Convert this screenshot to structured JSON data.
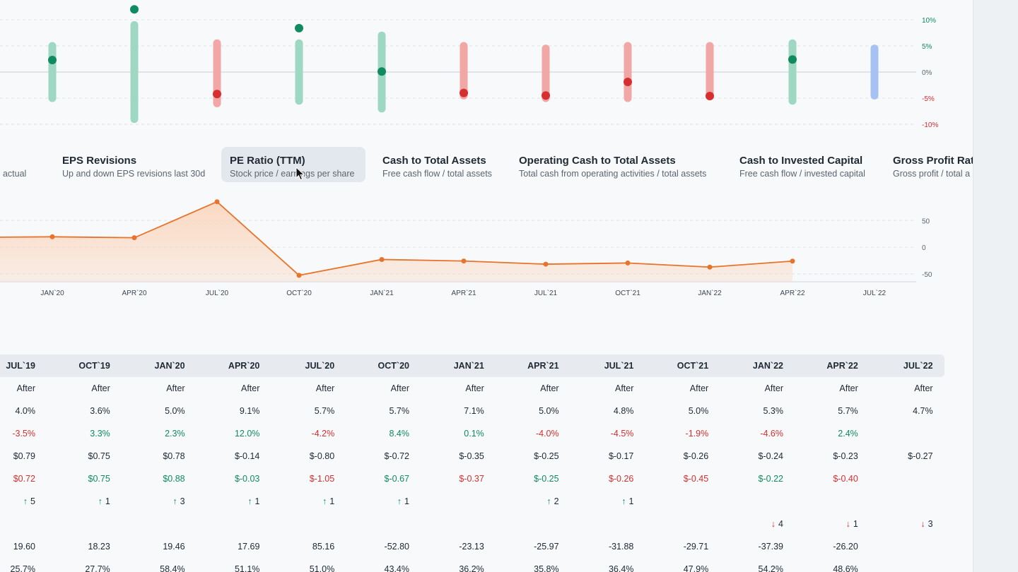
{
  "colors": {
    "positive": "#108a5f",
    "negative": "#d62f2f",
    "positive_bar": "#9fd8c2",
    "negative_bar": "#f2a7a7",
    "future_bar": "#a7c2f2",
    "line": "#e8732a",
    "area": "#fbd7bf"
  },
  "chart_data": [
    {
      "type": "scatter",
      "y_unit": "%",
      "ylim": [
        -10,
        10
      ],
      "y_ticks": [
        "10%",
        "5%",
        "0%",
        "-5%",
        "-10%"
      ],
      "points": [
        {
          "range": [
            -5,
            5
          ],
          "value": 2.3,
          "status": "positive"
        },
        {
          "range": [
            -9,
            9
          ],
          "value": 12.0,
          "status": "positive"
        },
        {
          "range": [
            -6,
            5.5
          ],
          "value": -4.2,
          "status": "negative"
        },
        {
          "range": [
            -5.5,
            5.5
          ],
          "value": 8.4,
          "status": "positive"
        },
        {
          "range": [
            -7,
            7
          ],
          "value": 0.1,
          "status": "positive"
        },
        {
          "range": [
            -4.5,
            5
          ],
          "value": -4.0,
          "status": "negative"
        },
        {
          "range": [
            -5,
            4.5
          ],
          "value": -4.5,
          "status": "negative"
        },
        {
          "range": [
            -5,
            5
          ],
          "value": -1.9,
          "status": "negative"
        },
        {
          "range": [
            -4.5,
            5
          ],
          "value": -4.6,
          "status": "negative"
        },
        {
          "range": [
            -5.5,
            5.5
          ],
          "value": 2.4,
          "status": "positive"
        },
        {
          "range": [
            -4.5,
            4.5
          ],
          "value": null,
          "status": "future"
        }
      ],
      "grid": true
    },
    {
      "type": "area",
      "x": [
        "OCT`19",
        "JAN`20",
        "APR`20",
        "JUL`20",
        "OCT`20",
        "JAN`21",
        "APR`21",
        "JUL`21",
        "OCT`21",
        "JAN`22",
        "APR`22"
      ],
      "x_ticks": [
        "JAN`20",
        "APR`20",
        "JUL`20",
        "OCT`20",
        "JAN`21",
        "APR`21",
        "JUL`21",
        "OCT`21",
        "JAN`22",
        "APR`22",
        "JUL`22"
      ],
      "values": [
        18.23,
        19.46,
        17.69,
        85.16,
        -52.8,
        -23.13,
        -25.97,
        -31.88,
        -29.71,
        -37.39,
        -26.2
      ],
      "ylim": [
        -65,
        95
      ],
      "y_ticks": [
        "50",
        "0",
        "-50"
      ],
      "grid": true
    }
  ],
  "tabs": [
    {
      "title": "",
      "sub": "vs actual",
      "active": false
    },
    {
      "title": "EPS Revisions",
      "sub": "Up and down EPS revisions last 30d",
      "active": false
    },
    {
      "title": "PE Ratio (TTM)",
      "sub": "Stock price / earnings per share",
      "active": true
    },
    {
      "title": "Cash to Total Assets",
      "sub": "Free cash flow / total assets",
      "active": false
    },
    {
      "title": "Operating Cash to Total Assets",
      "sub": "Total cash from operating activities / total assets",
      "active": false
    },
    {
      "title": "Cash to Invested Capital",
      "sub": "Free cash flow / invested capital",
      "active": false
    },
    {
      "title": "Gross Profit Ratio",
      "sub": "Gross profit / total a",
      "active": false
    }
  ],
  "table": {
    "columns": [
      "JUL`19",
      "OCT`19",
      "JAN`20",
      "APR`20",
      "JUL`20",
      "OCT`20",
      "JAN`21",
      "APR`21",
      "JUL`21",
      "OCT`21",
      "JAN`22",
      "APR`22",
      "JUL`22"
    ],
    "rows": [
      [
        {
          "t": "After",
          "c": "neutral"
        },
        {
          "t": "After",
          "c": "neutral"
        },
        {
          "t": "After",
          "c": "neutral"
        },
        {
          "t": "After",
          "c": "neutral"
        },
        {
          "t": "After",
          "c": "neutral"
        },
        {
          "t": "After",
          "c": "neutral"
        },
        {
          "t": "After",
          "c": "neutral"
        },
        {
          "t": "After",
          "c": "neutral"
        },
        {
          "t": "After",
          "c": "neutral"
        },
        {
          "t": "After",
          "c": "neutral"
        },
        {
          "t": "After",
          "c": "neutral"
        },
        {
          "t": "After",
          "c": "neutral"
        },
        {
          "t": "After",
          "c": "neutral"
        }
      ],
      [
        {
          "t": "4.0%",
          "c": "neutral"
        },
        {
          "t": "3.6%",
          "c": "neutral"
        },
        {
          "t": "5.0%",
          "c": "neutral"
        },
        {
          "t": "9.1%",
          "c": "neutral"
        },
        {
          "t": "5.7%",
          "c": "neutral"
        },
        {
          "t": "5.7%",
          "c": "neutral"
        },
        {
          "t": "7.1%",
          "c": "neutral"
        },
        {
          "t": "5.0%",
          "c": "neutral"
        },
        {
          "t": "4.8%",
          "c": "neutral"
        },
        {
          "t": "5.0%",
          "c": "neutral"
        },
        {
          "t": "5.3%",
          "c": "neutral"
        },
        {
          "t": "5.7%",
          "c": "neutral"
        },
        {
          "t": "4.7%",
          "c": "neutral"
        }
      ],
      [
        {
          "t": "-3.5%",
          "c": "neg"
        },
        {
          "t": "3.3%",
          "c": "pos"
        },
        {
          "t": "2.3%",
          "c": "pos"
        },
        {
          "t": "12.0%",
          "c": "pos"
        },
        {
          "t": "-4.2%",
          "c": "neg"
        },
        {
          "t": "8.4%",
          "c": "pos"
        },
        {
          "t": "0.1%",
          "c": "pos"
        },
        {
          "t": "-4.0%",
          "c": "neg"
        },
        {
          "t": "-4.5%",
          "c": "neg"
        },
        {
          "t": "-1.9%",
          "c": "neg"
        },
        {
          "t": "-4.6%",
          "c": "neg"
        },
        {
          "t": "2.4%",
          "c": "pos"
        },
        {
          "t": "",
          "c": "neutral"
        }
      ],
      [
        {
          "t": "$0.79",
          "c": "neutral"
        },
        {
          "t": "$0.75",
          "c": "neutral"
        },
        {
          "t": "$0.78",
          "c": "neutral"
        },
        {
          "t": "$-0.14",
          "c": "neutral"
        },
        {
          "t": "$-0.80",
          "c": "neutral"
        },
        {
          "t": "$-0.72",
          "c": "neutral"
        },
        {
          "t": "$-0.35",
          "c": "neutral"
        },
        {
          "t": "$-0.25",
          "c": "neutral"
        },
        {
          "t": "$-0.17",
          "c": "neutral"
        },
        {
          "t": "$-0.26",
          "c": "neutral"
        },
        {
          "t": "$-0.24",
          "c": "neutral"
        },
        {
          "t": "$-0.23",
          "c": "neutral"
        },
        {
          "t": "$-0.27",
          "c": "neutral"
        }
      ],
      [
        {
          "t": "$0.72",
          "c": "neg"
        },
        {
          "t": "$0.75",
          "c": "pos"
        },
        {
          "t": "$0.88",
          "c": "pos"
        },
        {
          "t": "$-0.03",
          "c": "pos"
        },
        {
          "t": "$-1.05",
          "c": "neg"
        },
        {
          "t": "$-0.67",
          "c": "pos"
        },
        {
          "t": "$-0.37",
          "c": "neg"
        },
        {
          "t": "$-0.25",
          "c": "pos"
        },
        {
          "t": "$-0.26",
          "c": "neg"
        },
        {
          "t": "$-0.45",
          "c": "neg"
        },
        {
          "t": "$-0.22",
          "c": "pos"
        },
        {
          "t": "$-0.40",
          "c": "neg"
        },
        {
          "t": "",
          "c": "neutral"
        }
      ],
      [
        {
          "t": "5",
          "c": "neutral",
          "arrow": "up"
        },
        {
          "t": "1",
          "c": "neutral",
          "arrow": "up"
        },
        {
          "t": "3",
          "c": "neutral",
          "arrow": "up"
        },
        {
          "t": "1",
          "c": "neutral",
          "arrow": "up"
        },
        {
          "t": "1",
          "c": "neutral",
          "arrow": "up"
        },
        {
          "t": "1",
          "c": "neutral",
          "arrow": "up"
        },
        {
          "t": "",
          "c": "neutral"
        },
        {
          "t": "2",
          "c": "neutral",
          "arrow": "up"
        },
        {
          "t": "1",
          "c": "neutral",
          "arrow": "up"
        },
        {
          "t": "",
          "c": "neutral"
        },
        {
          "t": "",
          "c": "neutral"
        },
        {
          "t": "",
          "c": "neutral"
        },
        {
          "t": "",
          "c": "neutral"
        }
      ],
      [
        {
          "t": "",
          "c": "neutral"
        },
        {
          "t": "",
          "c": "neutral"
        },
        {
          "t": "",
          "c": "neutral"
        },
        {
          "t": "",
          "c": "neutral"
        },
        {
          "t": "",
          "c": "neutral"
        },
        {
          "t": "",
          "c": "neutral"
        },
        {
          "t": "",
          "c": "neutral"
        },
        {
          "t": "",
          "c": "neutral"
        },
        {
          "t": "",
          "c": "neutral"
        },
        {
          "t": "",
          "c": "neutral"
        },
        {
          "t": "4",
          "c": "neutral",
          "arrow": "down"
        },
        {
          "t": "1",
          "c": "neutral",
          "arrow": "down"
        },
        {
          "t": "3",
          "c": "neutral",
          "arrow": "down"
        }
      ],
      [
        {
          "t": "19.60",
          "c": "neutral"
        },
        {
          "t": "18.23",
          "c": "neutral"
        },
        {
          "t": "19.46",
          "c": "neutral"
        },
        {
          "t": "17.69",
          "c": "neutral"
        },
        {
          "t": "85.16",
          "c": "neutral"
        },
        {
          "t": "-52.80",
          "c": "neutral"
        },
        {
          "t": "-23.13",
          "c": "neutral"
        },
        {
          "t": "-25.97",
          "c": "neutral"
        },
        {
          "t": "-31.88",
          "c": "neutral"
        },
        {
          "t": "-29.71",
          "c": "neutral"
        },
        {
          "t": "-37.39",
          "c": "neutral"
        },
        {
          "t": "-26.20",
          "c": "neutral"
        },
        {
          "t": "",
          "c": "neutral"
        }
      ],
      [
        {
          "t": "25.7%",
          "c": "neutral"
        },
        {
          "t": "27.7%",
          "c": "neutral"
        },
        {
          "t": "58.4%",
          "c": "neutral"
        },
        {
          "t": "51.1%",
          "c": "neutral"
        },
        {
          "t": "51.0%",
          "c": "neutral"
        },
        {
          "t": "43.4%",
          "c": "neutral"
        },
        {
          "t": "36.2%",
          "c": "neutral"
        },
        {
          "t": "35.8%",
          "c": "neutral"
        },
        {
          "t": "36.4%",
          "c": "neutral"
        },
        {
          "t": "47.9%",
          "c": "neutral"
        },
        {
          "t": "54.2%",
          "c": "neutral"
        },
        {
          "t": "48.6%",
          "c": "neutral"
        },
        {
          "t": "",
          "c": "neutral"
        }
      ]
    ]
  }
}
